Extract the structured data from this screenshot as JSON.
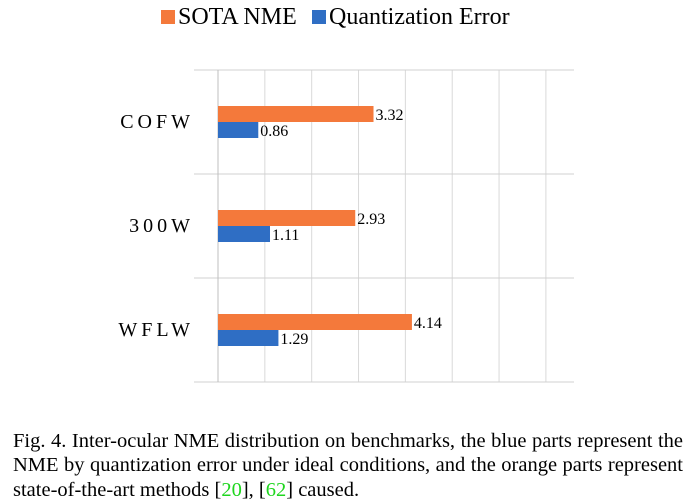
{
  "chart_data": {
    "type": "bar",
    "orientation": "horizontal",
    "categories": [
      "COFW",
      "300W",
      "WFLW"
    ],
    "series": [
      {
        "name": "SOTA NME",
        "color": "#f4793b",
        "values": [
          3.32,
          2.93,
          4.14
        ]
      },
      {
        "name": "Quantization Error",
        "color": "#2f6ec4",
        "values": [
          0.86,
          1.11,
          1.29
        ]
      }
    ],
    "xlim": [
      0,
      7.6
    ],
    "legend_position": "top",
    "grid": true
  },
  "caption": {
    "text_before": "Fig. 4.  Inter-ocular NME distribution on benchmarks, the blue parts represent the NME by quantization error under ideal conditions, and the orange parts represent state-of-the-art methods [",
    "ref1": "20",
    "text_middle": "], [",
    "ref2": "62",
    "text_after": "] caused."
  }
}
